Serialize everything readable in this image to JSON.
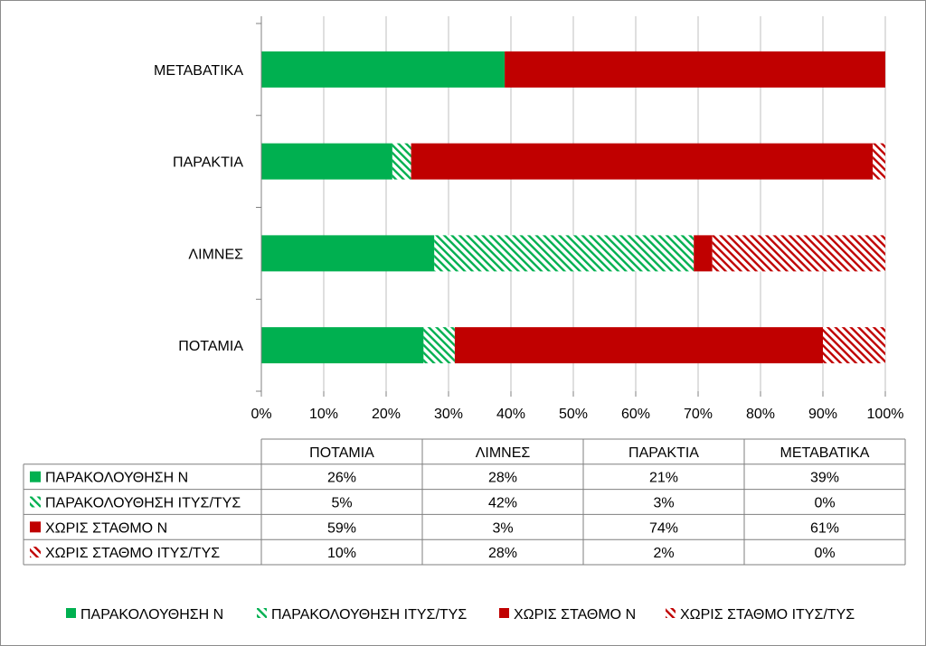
{
  "chart_data": {
    "type": "bar",
    "orientation": "horizontal",
    "stacked": "percent",
    "title": "",
    "xlabel": "",
    "ylabel": "",
    "xlim": [
      0,
      100
    ],
    "x_ticks": [
      "0%",
      "10%",
      "20%",
      "30%",
      "40%",
      "50%",
      "60%",
      "70%",
      "80%",
      "90%",
      "100%"
    ],
    "grid": "vertical",
    "legend_placement": "bottom",
    "categories": [
      "ΠΟΤΑΜΙΑ",
      "ΛΙΜΝΕΣ",
      "ΠΑΡΑΚΤΙΑ",
      "ΜΕΤΑΒΑΤΙΚΑ"
    ],
    "series": [
      {
        "name": "ΠΑΡΑΚΟΛΟΥΘΗΣΗ Ν",
        "color": "#00b050",
        "pattern": "solid",
        "values": [
          26,
          28,
          21,
          39
        ],
        "labels": [
          "26%",
          "28%",
          "21%",
          "39%"
        ]
      },
      {
        "name": "ΠΑΡΑΚΟΛΟΥΘΗΣΗ ΙΤΥΣ/ΤΥΣ",
        "color": "#00b050",
        "pattern": "hatched",
        "values": [
          5,
          42,
          3,
          0
        ],
        "labels": [
          "5%",
          "42%",
          "3%",
          "0%"
        ]
      },
      {
        "name": "ΧΩΡΙΣ ΣΤΑΘΜΟ Ν",
        "color": "#c00000",
        "pattern": "solid",
        "values": [
          59,
          3,
          74,
          61
        ],
        "labels": [
          "59%",
          "3%",
          "74%",
          "61%"
        ]
      },
      {
        "name": "ΧΩΡΙΣ ΣΤΑΘΜΟ ΙΤΥΣ/ΤΥΣ",
        "color": "#c00000",
        "pattern": "hatched",
        "values": [
          10,
          28,
          2,
          0
        ],
        "labels": [
          "10%",
          "28%",
          "2%",
          "0%"
        ]
      }
    ],
    "data_table": true
  }
}
